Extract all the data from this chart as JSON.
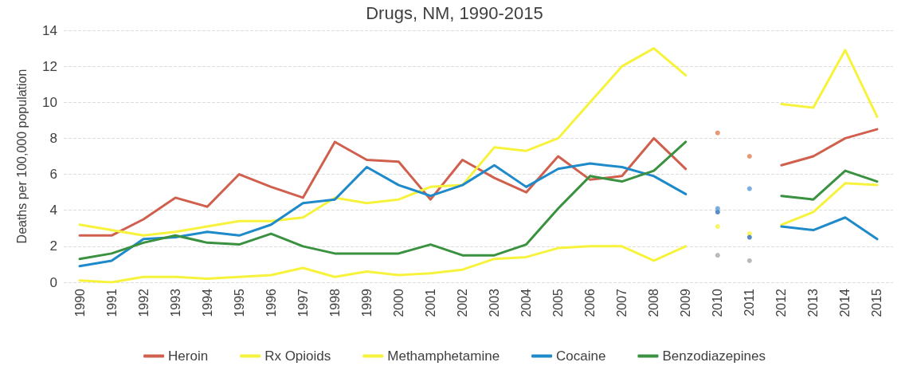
{
  "chart_data": {
    "type": "line",
    "title": "Drugs, NM, 1990-2015",
    "ylabel": "Deaths per 100,000 population",
    "categories": [
      "1990",
      "1991",
      "1992",
      "1993",
      "1994",
      "1995",
      "1996",
      "1997",
      "1998",
      "1999",
      "2000",
      "2001",
      "2002",
      "2003",
      "2004",
      "2005",
      "2006",
      "2007",
      "2008",
      "2009",
      "2010",
      "2011",
      "2012",
      "2013",
      "2014",
      "2015"
    ],
    "series": [
      {
        "name": "Heroin",
        "color": "#d0604d",
        "values": [
          2.6,
          2.6,
          3.5,
          4.7,
          4.2,
          6.0,
          5.3,
          4.7,
          7.8,
          6.8,
          6.7,
          4.6,
          6.8,
          5.8,
          5.0,
          7.0,
          5.7,
          5.9,
          8.0,
          6.3,
          null,
          null,
          6.5,
          7.0,
          8.0,
          8.5
        ]
      },
      {
        "name": "Rx Opioids",
        "color": "#f7f33c",
        "values": [
          3.2,
          2.9,
          2.6,
          2.8,
          3.1,
          3.4,
          3.4,
          3.6,
          4.7,
          4.4,
          4.6,
          5.3,
          5.4,
          7.5,
          7.3,
          8.0,
          10.0,
          12.0,
          13.0,
          11.5,
          null,
          null,
          9.9,
          9.7,
          12.9,
          9.2
        ]
      },
      {
        "name": "Methamphetamine",
        "color": "#f7f33c",
        "values": [
          0.1,
          0.0,
          0.3,
          0.3,
          0.2,
          0.3,
          0.4,
          0.8,
          0.3,
          0.6,
          0.4,
          0.5,
          0.7,
          1.3,
          1.4,
          1.9,
          2.0,
          2.0,
          1.2,
          2.0,
          null,
          null,
          3.2,
          3.9,
          5.5,
          5.4
        ]
      },
      {
        "name": "Cocaine",
        "color": "#1f8ac9",
        "values": [
          0.9,
          1.2,
          2.4,
          2.5,
          2.8,
          2.6,
          3.2,
          4.4,
          4.6,
          6.4,
          5.4,
          4.8,
          5.4,
          6.5,
          5.3,
          6.3,
          6.6,
          6.4,
          5.9,
          4.9,
          null,
          null,
          3.1,
          2.9,
          3.6,
          2.4
        ]
      },
      {
        "name": "Benzodiazepines",
        "color": "#3a9140",
        "values": [
          1.3,
          1.6,
          2.2,
          2.6,
          2.2,
          2.1,
          2.7,
          2.0,
          1.6,
          1.6,
          1.6,
          2.1,
          1.5,
          1.5,
          2.1,
          4.1,
          5.9,
          5.6,
          6.2,
          7.8,
          null,
          null,
          4.8,
          4.6,
          6.2,
          5.6
        ]
      },
      {
        "type": "scatter",
        "color": "#e0804f",
        "values": [
          null,
          null,
          null,
          null,
          null,
          null,
          null,
          null,
          null,
          null,
          null,
          null,
          null,
          null,
          null,
          null,
          null,
          null,
          null,
          null,
          8.3,
          7.0,
          null,
          null,
          null,
          null
        ]
      },
      {
        "type": "scatter",
        "color": "#f7f33c",
        "values": [
          null,
          null,
          null,
          null,
          null,
          null,
          null,
          null,
          null,
          null,
          null,
          null,
          null,
          null,
          null,
          null,
          null,
          null,
          null,
          null,
          3.1,
          2.7,
          null,
          null,
          null,
          null
        ]
      },
      {
        "type": "scatter",
        "color": "#2f6fb5",
        "values": [
          null,
          null,
          null,
          null,
          null,
          null,
          null,
          null,
          null,
          null,
          null,
          null,
          null,
          null,
          null,
          null,
          null,
          null,
          null,
          null,
          3.9,
          2.5,
          null,
          null,
          null,
          null
        ]
      },
      {
        "type": "scatter",
        "color": "#5b9bd5",
        "values": [
          null,
          null,
          null,
          null,
          null,
          null,
          null,
          null,
          null,
          null,
          null,
          null,
          null,
          null,
          null,
          null,
          null,
          null,
          null,
          null,
          4.1,
          5.2,
          null,
          null,
          null,
          null
        ]
      },
      {
        "type": "scatter",
        "color": "#a9a9a9",
        "values": [
          null,
          null,
          null,
          null,
          null,
          null,
          null,
          null,
          null,
          null,
          null,
          null,
          null,
          null,
          null,
          null,
          null,
          null,
          null,
          null,
          1.5,
          1.2,
          null,
          null,
          null,
          null
        ]
      }
    ],
    "ylim": [
      0,
      14
    ],
    "yticks": [
      0,
      2,
      4,
      6,
      8,
      10,
      12,
      14
    ],
    "grid": "y",
    "legend": "bottom"
  }
}
